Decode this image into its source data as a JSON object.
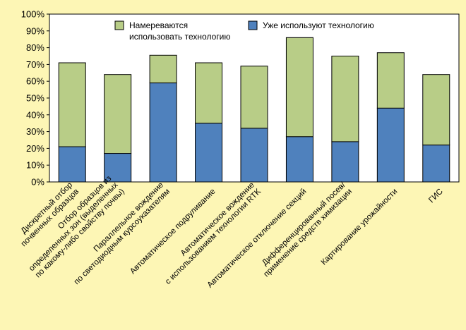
{
  "chart_data": {
    "type": "bar",
    "stacked": true,
    "categories": [
      [
        "Дискретный отбор",
        "почвенных образцов"
      ],
      [
        "Отбор образцов из",
        "определенных зон (выделенных",
        "по какому-либо свойству почвы)"
      ],
      [
        "Параллельное вождение",
        "по светодиодным курсоуказателям"
      ],
      [
        "Автоматическое подруливание"
      ],
      [
        "Автоматическое вождение",
        "с использованием технологии RTK"
      ],
      [
        "Автоматическое отключение секций"
      ],
      [
        "Дифференцированный посев/",
        "применение средств химизации"
      ],
      [
        "Картирование урожайности"
      ],
      [
        "ГИС"
      ]
    ],
    "series": [
      {
        "name": "Уже используют технологию",
        "color": "#4f81bd",
        "values": [
          21,
          17,
          59,
          35,
          32,
          27,
          24,
          44,
          22
        ]
      },
      {
        "name": "Намереваются использовать технологию",
        "color": "#b8cd87",
        "values": [
          50,
          47,
          16.5,
          36,
          37,
          59,
          51,
          33,
          42
        ]
      }
    ],
    "ylim": [
      0,
      100
    ],
    "yticks": [
      "0%",
      "10%",
      "20%",
      "30%",
      "40%",
      "50%",
      "60%",
      "70%",
      "80%",
      "90%",
      "100%"
    ],
    "legend": {
      "position": "top",
      "entries": [
        {
          "lines": [
            "Намереваются",
            "использовать технологию"
          ],
          "color": "#b8cd87"
        },
        {
          "lines": [
            "Уже используют технологию"
          ],
          "color": "#4f81bd"
        }
      ]
    },
    "grid": false
  }
}
